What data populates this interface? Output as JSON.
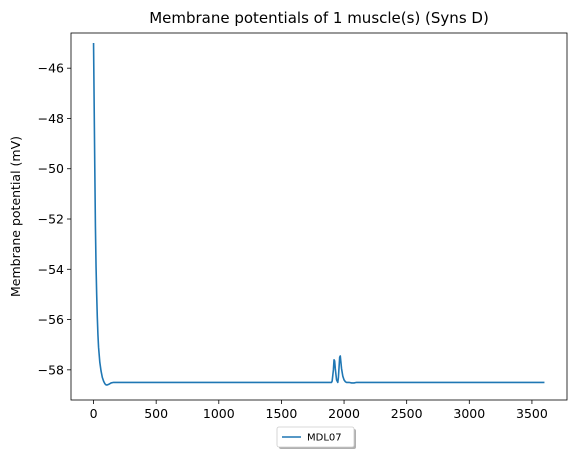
{
  "chart_data": {
    "type": "line",
    "title": "Membrane potentials of 1 muscle(s) (Syns D)",
    "xlabel": "",
    "ylabel": "Membrane potential (mV)",
    "xlim": [
      -180,
      3780
    ],
    "ylim": [
      -59.2,
      -44.6
    ],
    "x_ticks": [
      0,
      500,
      1000,
      1500,
      2000,
      2500,
      3000,
      3500
    ],
    "y_ticks": [
      -46,
      -48,
      -50,
      -52,
      -54,
      -56,
      -58
    ],
    "x_tick_labels": [
      "0",
      "500",
      "1000",
      "1500",
      "2000",
      "2500",
      "3000",
      "3500"
    ],
    "y_tick_labels": [
      "−46",
      "−48",
      "−50",
      "−52",
      "−54",
      "−56",
      "−58"
    ],
    "grid": false,
    "legend": {
      "position": "bottom-center",
      "shadow": true
    },
    "series": [
      {
        "name": "MDL07",
        "color": "#1f77b4",
        "x": [
          0,
          5,
          10,
          15,
          20,
          25,
          30,
          35,
          40,
          50,
          60,
          70,
          80,
          90,
          100,
          110,
          120,
          130,
          140,
          160,
          200,
          300,
          500,
          1000,
          1500,
          1900,
          1905,
          1915,
          1920,
          1925,
          1930,
          1940,
          1950,
          1955,
          1960,
          1965,
          1970,
          1975,
          1980,
          1990,
          2000,
          2010,
          2020,
          2040,
          2060,
          2080,
          2100,
          2200,
          2500,
          3000,
          3600
        ],
        "y": [
          -45.0,
          -47.5,
          -50.0,
          -52.3,
          -53.9,
          -55.0,
          -55.9,
          -56.6,
          -57.1,
          -57.7,
          -58.05,
          -58.3,
          -58.45,
          -58.55,
          -58.6,
          -58.6,
          -58.58,
          -58.55,
          -58.52,
          -58.5,
          -58.5,
          -58.5,
          -58.5,
          -58.5,
          -58.5,
          -58.5,
          -58.45,
          -58.0,
          -57.6,
          -57.65,
          -57.95,
          -58.4,
          -58.5,
          -58.3,
          -57.9,
          -57.5,
          -57.45,
          -57.7,
          -57.95,
          -58.25,
          -58.4,
          -58.47,
          -58.5,
          -58.5,
          -58.52,
          -58.52,
          -58.5,
          -58.5,
          -58.5,
          -58.5,
          -58.5
        ]
      }
    ]
  }
}
